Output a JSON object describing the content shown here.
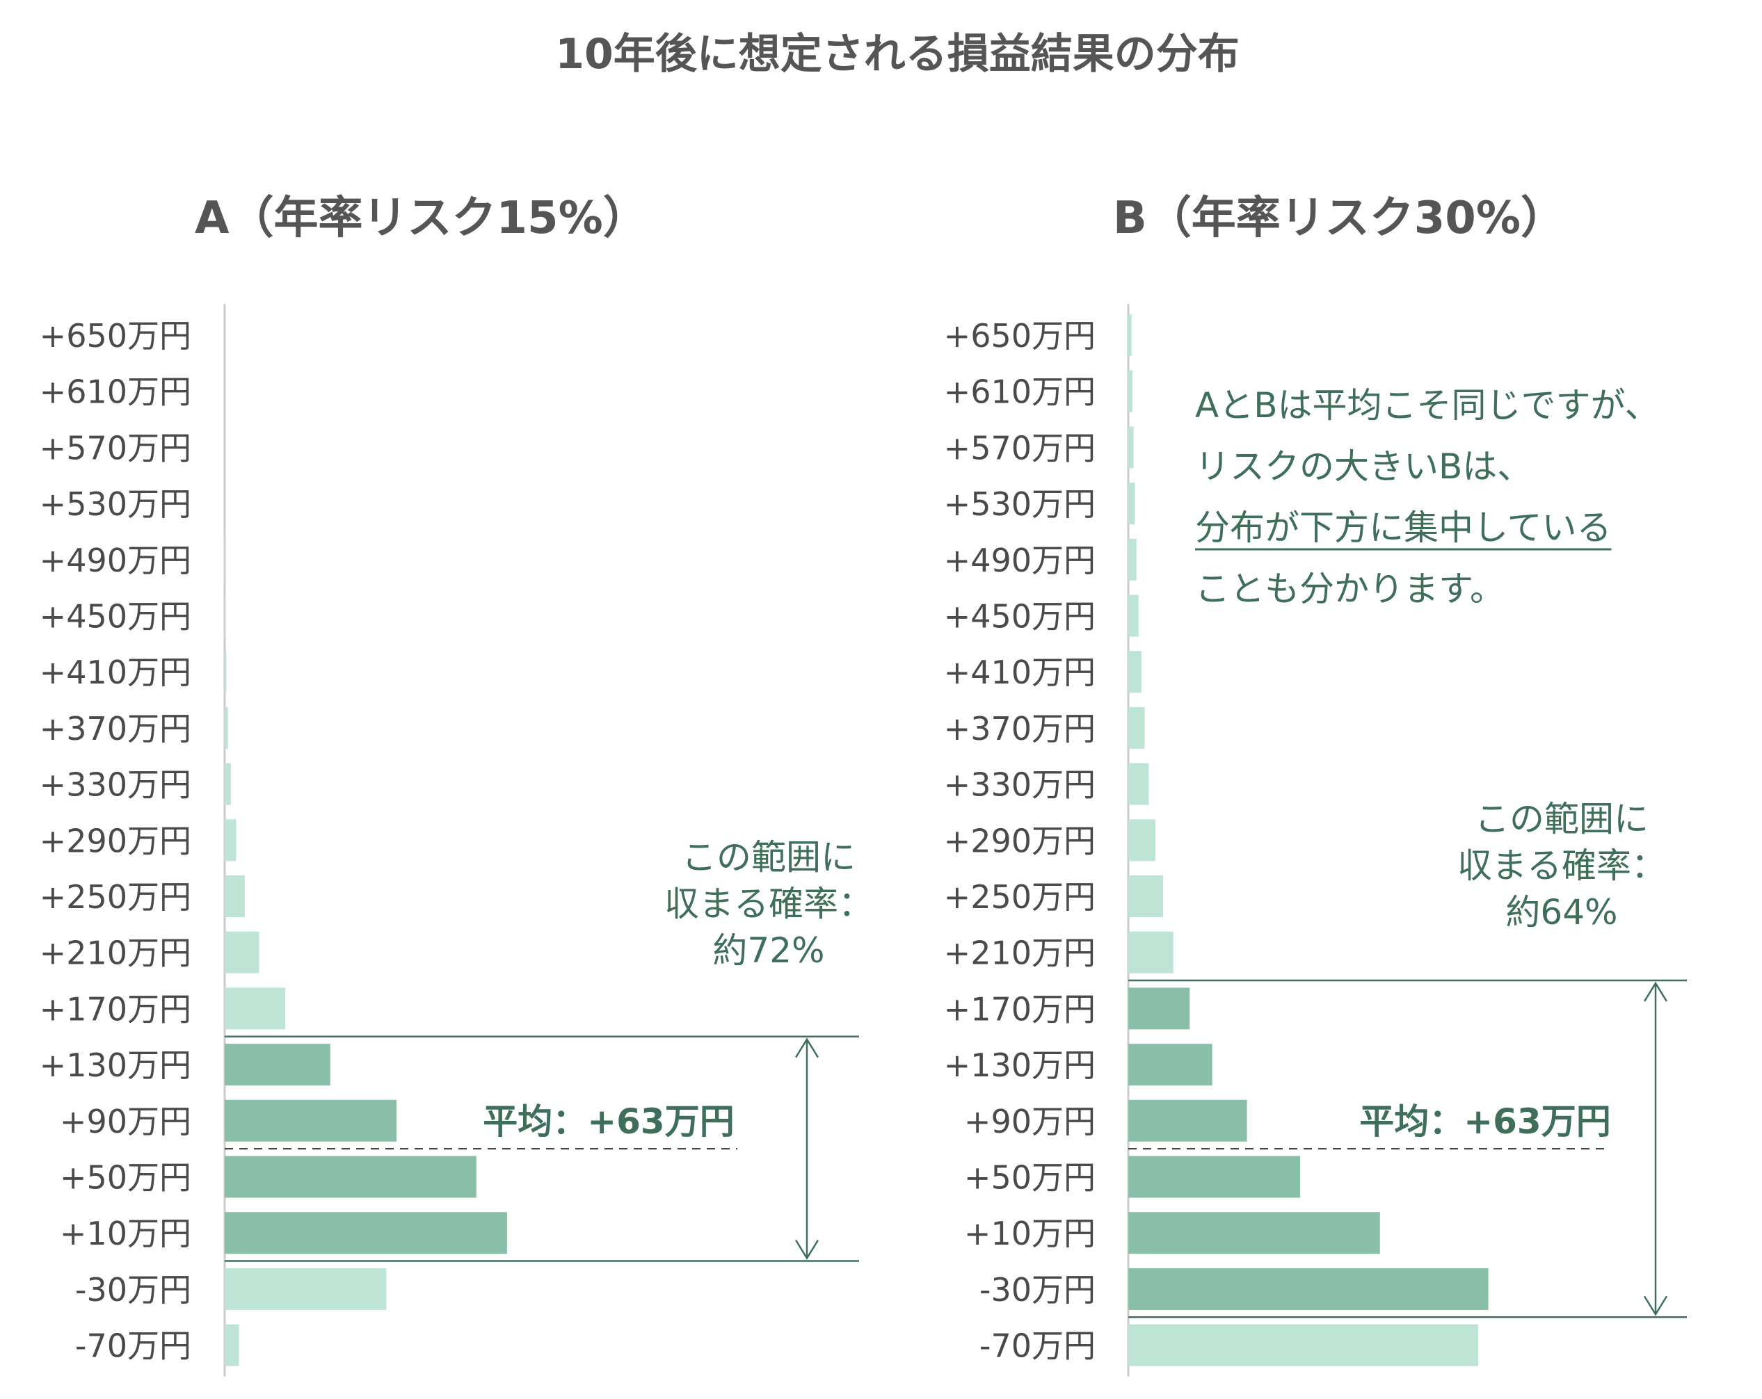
{
  "title": "10年後に想定される損益結果の分布",
  "colors": {
    "in_range": "#89bfa9",
    "out_range": "#bde4d5",
    "accent": "#3f6f5a",
    "axis": "#cccccc",
    "title": "#555555"
  },
  "chart_data": [
    {
      "type": "bar",
      "orientation": "horizontal",
      "title": "A（年率リスク15%）",
      "categories": [
        "+650万円",
        "+610万円",
        "+570万円",
        "+530万円",
        "+490万円",
        "+450万円",
        "+410万円",
        "+370万円",
        "+330万円",
        "+290万円",
        "+250万円",
        "+210万円",
        "+170万円",
        "+130万円",
        "+90万円",
        "+50万円",
        "+10万円",
        "-30万円",
        "-70万円"
      ],
      "values": [
        0,
        0,
        0,
        0,
        0.1,
        0.2,
        0.4,
        0.8,
        1.5,
        2.8,
        4.9,
        8.4,
        14.8,
        25.8,
        42.0,
        61.5,
        69.0,
        39.5,
        3.5
      ],
      "xlim": [
        0,
        170
      ],
      "highlight": {
        "from": "+130万円",
        "to": "+10万円"
      },
      "mean_line_between": [
        "+90万円",
        "+50万円"
      ],
      "mean_label": "平均：+63万円",
      "range_label": [
        "この範囲に",
        "収まる確率：",
        "約72%"
      ]
    },
    {
      "type": "bar",
      "orientation": "horizontal",
      "title": "B（年率リスク30%）",
      "categories": [
        "+650万円",
        "+610万円",
        "+570万円",
        "+530万円",
        "+490万円",
        "+450万円",
        "+410万円",
        "+370万円",
        "+330万円",
        "+290万円",
        "+250万円",
        "+210万円",
        "+170万円",
        "+130万円",
        "+90万円",
        "+50万円",
        "+10万円",
        "-30万円",
        "-70万円"
      ],
      "values": [
        0.8,
        1.0,
        1.3,
        1.6,
        2.0,
        2.5,
        3.2,
        4.0,
        5.0,
        6.6,
        8.5,
        11.0,
        15.0,
        20.5,
        29.0,
        42.0,
        61.5,
        88.0,
        85.5
      ],
      "xlim": [
        0,
        170
      ],
      "highlight": {
        "from": "+170万円",
        "to": "-30万円"
      },
      "mean_line_between": [
        "+90万円",
        "+50万円"
      ],
      "mean_label": "平均：+63万円",
      "range_label": [
        "この範囲に",
        "収まる確率：",
        "約64%"
      ]
    }
  ],
  "note": {
    "lines": [
      "AとBは平均こそ同じですが、",
      "リスクの大きいBは、",
      "分布が下方に集中している",
      "ことも分かります。"
    ],
    "underlined_line": "分布が下方に集中している"
  }
}
